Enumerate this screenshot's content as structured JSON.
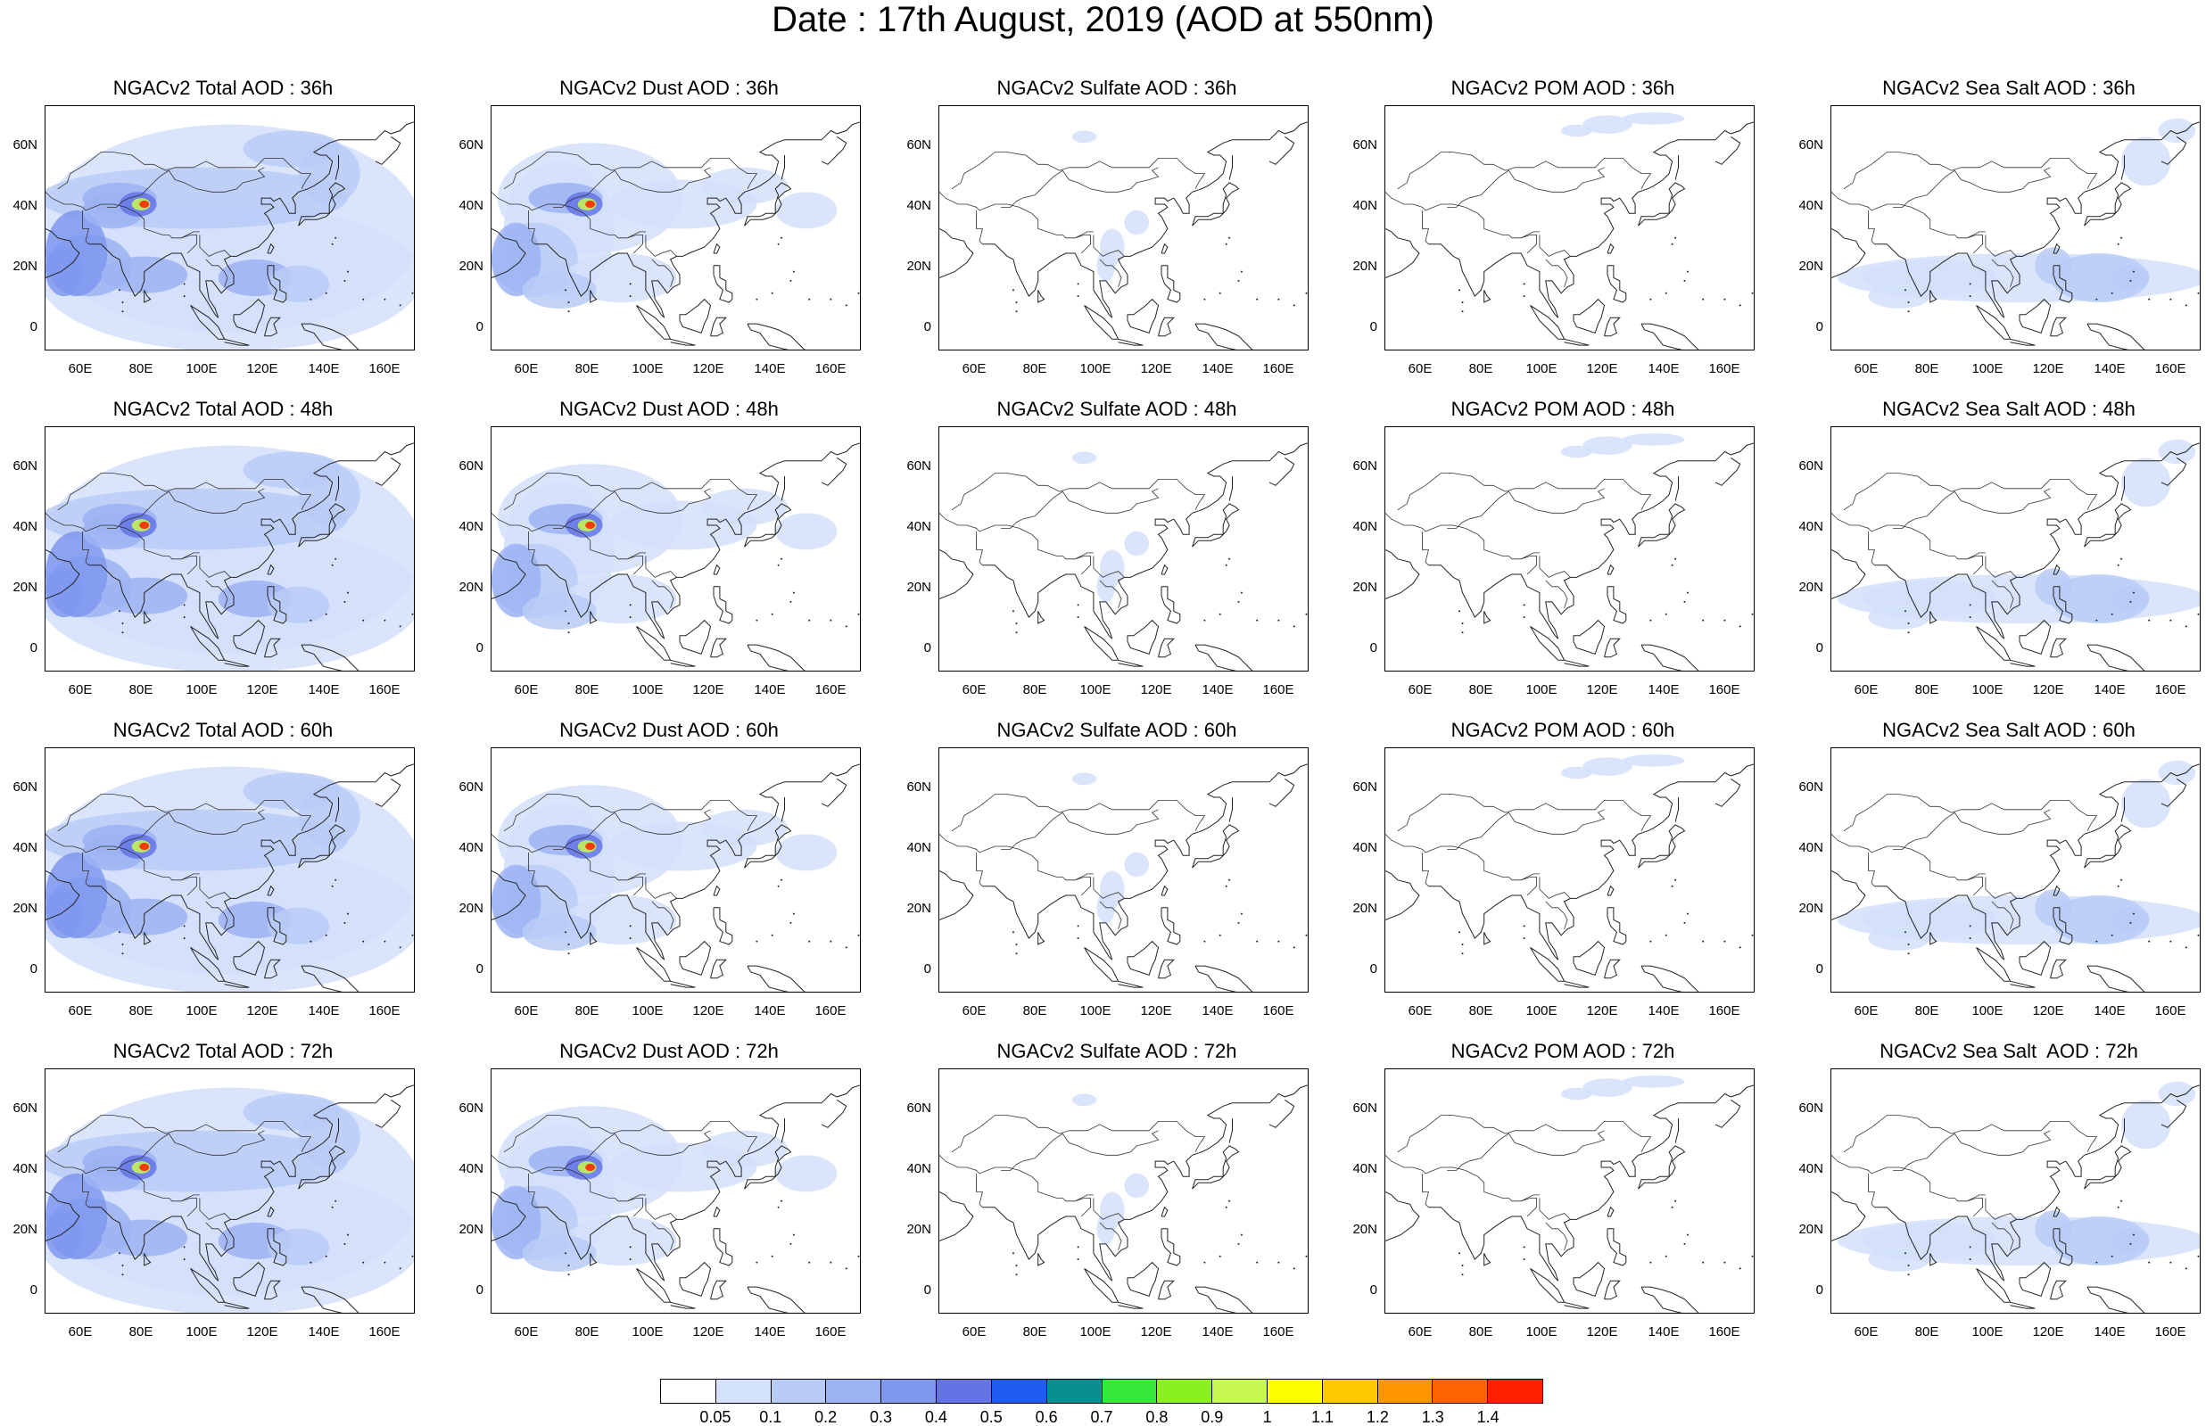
{
  "title": "Date : 17th August, 2019 (AOD at 550nm)",
  "axes": {
    "y_labels": [
      "60N",
      "40N",
      "20N",
      "0"
    ],
    "x_labels": [
      "60E",
      "80E",
      "100E",
      "120E",
      "140E",
      "160E"
    ]
  },
  "panels": [
    [
      "NGACv2 Total AOD : 36h",
      "NGACv2 Dust AOD : 36h",
      "NGACv2 Sulfate AOD : 36h",
      "NGACv2 POM AOD : 36h",
      "NGACv2 Sea Salt AOD : 36h"
    ],
    [
      "NGACv2 Total AOD : 48h",
      "NGACv2 Dust AOD : 48h",
      "NGACv2 Sulfate AOD : 48h",
      "NGACv2 POM AOD : 48h",
      "NGACv2 Sea Salt AOD : 48h"
    ],
    [
      "NGACv2 Total AOD : 60h",
      "NGACv2 Dust AOD : 60h",
      "NGACv2 Sulfate AOD : 60h",
      "NGACv2 POM AOD : 60h",
      "NGACv2 Sea Salt AOD : 60h"
    ],
    [
      "NGACv2 Total AOD : 72h",
      "NGACv2 Dust AOD : 72h",
      "NGACv2 Sulfate AOD : 72h",
      "NGACv2 POM AOD : 72h",
      "NGACv2 Sea Salt  AOD : 72h"
    ]
  ],
  "colorbar": {
    "labels": [
      "0.05",
      "0.1",
      "0.2",
      "0.3",
      "0.4",
      "0.5",
      "0.6",
      "0.7",
      "0.8",
      "0.9",
      "1",
      "1.1",
      "1.2",
      "1.3",
      "1.4"
    ],
    "colors": [
      "#ffffff",
      "#d4e1fb",
      "#b8cbf7",
      "#9cb3f3",
      "#7f98ee",
      "#6474e6",
      "#1f5cf2",
      "#089090",
      "#38e838",
      "#8af020",
      "#c8f850",
      "#ffff00",
      "#ffc800",
      "#ff9600",
      "#ff6400",
      "#ff2000"
    ]
  }
}
